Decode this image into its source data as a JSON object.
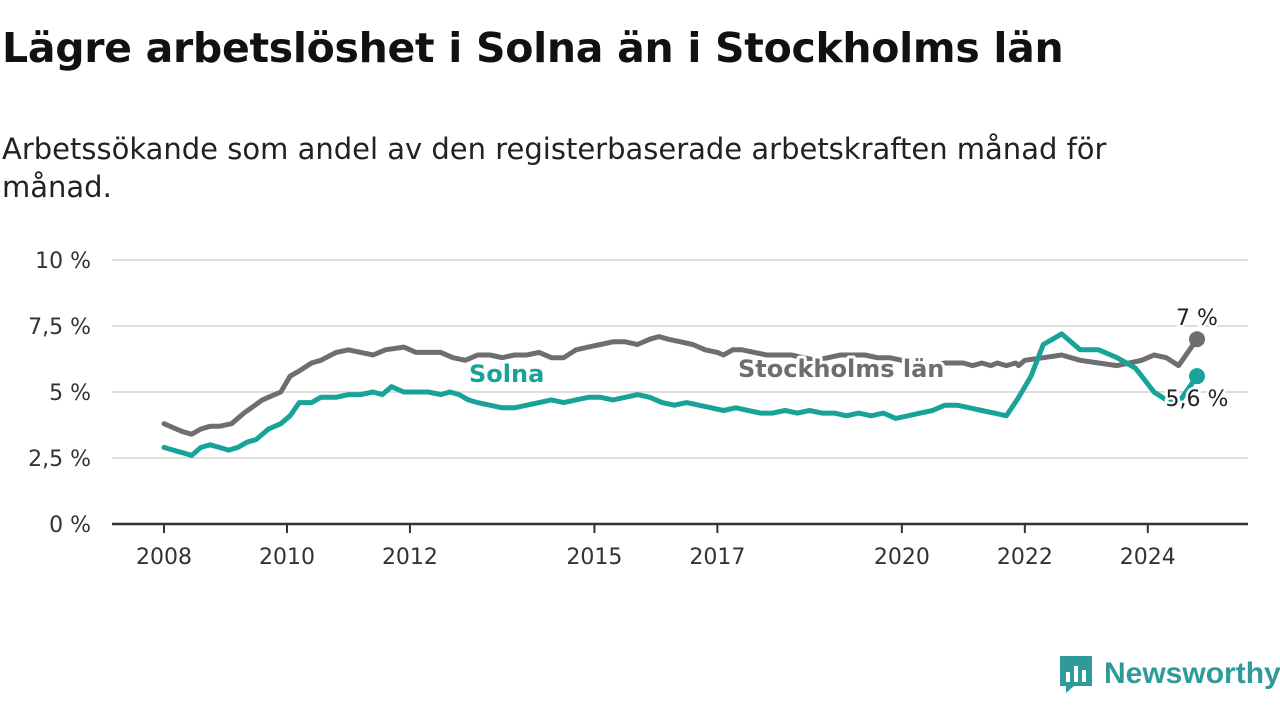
{
  "title": "Lägre arbetslöshet i Solna än i Stockholms län",
  "subtitle": "Arbetssökande som andel av den registerbaserade arbetskraften månad för månad.",
  "brand": "Newsworthy",
  "colors": {
    "solna": "#17a398",
    "stockholm": "#6e6e70",
    "grid": "#dddddd",
    "brand": "#2f9a9a"
  },
  "chart_data": {
    "type": "line",
    "title": "Lägre arbetslöshet i Solna än i Stockholms län",
    "ylabel": "",
    "xlabel": "",
    "ylim": [
      0,
      10
    ],
    "xlim": [
      2008,
      2024.9
    ],
    "y_ticks": [
      {
        "value": 0,
        "label": "0 %"
      },
      {
        "value": 2.5,
        "label": "2,5 %"
      },
      {
        "value": 5,
        "label": "5 %"
      },
      {
        "value": 7.5,
        "label": "7,5 %"
      },
      {
        "value": 10,
        "label": "10 %"
      }
    ],
    "x_ticks": [
      {
        "value": 2008,
        "label": "2008"
      },
      {
        "value": 2010,
        "label": "2010"
      },
      {
        "value": 2012,
        "label": "2012"
      },
      {
        "value": 2015,
        "label": "2015"
      },
      {
        "value": 2017,
        "label": "2017"
      },
      {
        "value": 2020,
        "label": "2020"
      },
      {
        "value": 2022,
        "label": "2022"
      },
      {
        "value": 2024,
        "label": "2024"
      }
    ],
    "series": [
      {
        "name": "Stockholms län",
        "label_at": [
          2017.2,
          5.9
        ],
        "end_label": "7 %",
        "points": [
          [
            2008.0,
            3.8
          ],
          [
            2008.2,
            3.6
          ],
          [
            2008.3,
            3.5
          ],
          [
            2008.45,
            3.4
          ],
          [
            2008.6,
            3.6
          ],
          [
            2008.75,
            3.7
          ],
          [
            2008.9,
            3.7
          ],
          [
            2009.1,
            3.8
          ],
          [
            2009.3,
            4.2
          ],
          [
            2009.6,
            4.7
          ],
          [
            2009.8,
            4.9
          ],
          [
            2009.9,
            5.0
          ],
          [
            2010.05,
            5.6
          ],
          [
            2010.2,
            5.8
          ],
          [
            2010.4,
            6.1
          ],
          [
            2010.55,
            6.2
          ],
          [
            2010.8,
            6.5
          ],
          [
            2011.0,
            6.6
          ],
          [
            2011.2,
            6.5
          ],
          [
            2011.4,
            6.4
          ],
          [
            2011.6,
            6.6
          ],
          [
            2011.9,
            6.7
          ],
          [
            2012.1,
            6.5
          ],
          [
            2012.3,
            6.5
          ],
          [
            2012.5,
            6.5
          ],
          [
            2012.7,
            6.3
          ],
          [
            2012.9,
            6.2
          ],
          [
            2013.1,
            6.4
          ],
          [
            2013.3,
            6.4
          ],
          [
            2013.5,
            6.3
          ],
          [
            2013.7,
            6.4
          ],
          [
            2013.9,
            6.4
          ],
          [
            2014.1,
            6.5
          ],
          [
            2014.3,
            6.3
          ],
          [
            2014.5,
            6.3
          ],
          [
            2014.7,
            6.6
          ],
          [
            2014.9,
            6.7
          ],
          [
            2015.1,
            6.8
          ],
          [
            2015.3,
            6.9
          ],
          [
            2015.5,
            6.9
          ],
          [
            2015.7,
            6.8
          ],
          [
            2015.9,
            7.0
          ],
          [
            2016.05,
            7.1
          ],
          [
            2016.2,
            7.0
          ],
          [
            2016.4,
            6.9
          ],
          [
            2016.6,
            6.8
          ],
          [
            2016.8,
            6.6
          ],
          [
            2017.0,
            6.5
          ],
          [
            2017.1,
            6.4
          ],
          [
            2017.25,
            6.6
          ],
          [
            2017.4,
            6.6
          ],
          [
            2017.6,
            6.5
          ],
          [
            2017.8,
            6.4
          ],
          [
            2018.0,
            6.4
          ],
          [
            2018.2,
            6.4
          ],
          [
            2018.4,
            6.3
          ],
          [
            2018.6,
            6.2
          ],
          [
            2018.8,
            6.3
          ],
          [
            2019.0,
            6.4
          ],
          [
            2019.2,
            6.4
          ],
          [
            2019.4,
            6.4
          ],
          [
            2019.6,
            6.3
          ],
          [
            2019.8,
            6.3
          ],
          [
            2020.0,
            6.2
          ],
          [
            2020.15,
            6.1
          ],
          [
            2020.3,
            6.0
          ],
          [
            2020.5,
            6.0
          ],
          [
            2020.7,
            6.1
          ],
          [
            2020.85,
            6.1
          ],
          [
            2021.0,
            6.1
          ],
          [
            2021.15,
            6.0
          ],
          [
            2021.3,
            6.1
          ],
          [
            2021.45,
            6.0
          ],
          [
            2021.55,
            6.1
          ],
          [
            2021.7,
            6.0
          ],
          [
            2021.85,
            6.1
          ],
          [
            2021.9,
            6.0
          ],
          [
            2022.0,
            6.2
          ],
          [
            2022.3,
            6.3
          ],
          [
            2022.6,
            6.4
          ],
          [
            2022.9,
            6.2
          ],
          [
            2023.2,
            6.1
          ],
          [
            2023.5,
            6.0
          ],
          [
            2023.7,
            6.1
          ],
          [
            2023.9,
            6.2
          ],
          [
            2024.1,
            6.4
          ],
          [
            2024.3,
            6.3
          ],
          [
            2024.5,
            6.0
          ],
          [
            2024.8,
            7.0
          ]
        ]
      },
      {
        "name": "Solna",
        "label_at": [
          2013.9,
          5.45
        ],
        "end_label": "5,6 %",
        "points": [
          [
            2008.0,
            2.9
          ],
          [
            2008.15,
            2.8
          ],
          [
            2008.3,
            2.7
          ],
          [
            2008.45,
            2.6
          ],
          [
            2008.6,
            2.9
          ],
          [
            2008.75,
            3.0
          ],
          [
            2008.9,
            2.9
          ],
          [
            2009.05,
            2.8
          ],
          [
            2009.2,
            2.9
          ],
          [
            2009.35,
            3.1
          ],
          [
            2009.5,
            3.2
          ],
          [
            2009.7,
            3.6
          ],
          [
            2009.9,
            3.8
          ],
          [
            2010.05,
            4.1
          ],
          [
            2010.2,
            4.6
          ],
          [
            2010.4,
            4.6
          ],
          [
            2010.55,
            4.8
          ],
          [
            2010.8,
            4.8
          ],
          [
            2011.0,
            4.9
          ],
          [
            2011.2,
            4.9
          ],
          [
            2011.4,
            5.0
          ],
          [
            2011.55,
            4.9
          ],
          [
            2011.7,
            5.2
          ],
          [
            2011.9,
            5.0
          ],
          [
            2012.1,
            5.0
          ],
          [
            2012.3,
            5.0
          ],
          [
            2012.5,
            4.9
          ],
          [
            2012.65,
            5.0
          ],
          [
            2012.8,
            4.9
          ],
          [
            2012.95,
            4.7
          ],
          [
            2013.1,
            4.6
          ],
          [
            2013.3,
            4.5
          ],
          [
            2013.5,
            4.4
          ],
          [
            2013.7,
            4.4
          ],
          [
            2013.9,
            4.5
          ],
          [
            2014.1,
            4.6
          ],
          [
            2014.3,
            4.7
          ],
          [
            2014.5,
            4.6
          ],
          [
            2014.7,
            4.7
          ],
          [
            2014.9,
            4.8
          ],
          [
            2015.1,
            4.8
          ],
          [
            2015.3,
            4.7
          ],
          [
            2015.5,
            4.8
          ],
          [
            2015.7,
            4.9
          ],
          [
            2015.9,
            4.8
          ],
          [
            2016.1,
            4.6
          ],
          [
            2016.3,
            4.5
          ],
          [
            2016.5,
            4.6
          ],
          [
            2016.7,
            4.5
          ],
          [
            2016.9,
            4.4
          ],
          [
            2017.1,
            4.3
          ],
          [
            2017.3,
            4.4
          ],
          [
            2017.5,
            4.3
          ],
          [
            2017.7,
            4.2
          ],
          [
            2017.9,
            4.2
          ],
          [
            2018.1,
            4.3
          ],
          [
            2018.3,
            4.2
          ],
          [
            2018.5,
            4.3
          ],
          [
            2018.7,
            4.2
          ],
          [
            2018.9,
            4.2
          ],
          [
            2019.1,
            4.1
          ],
          [
            2019.3,
            4.2
          ],
          [
            2019.5,
            4.1
          ],
          [
            2019.7,
            4.2
          ],
          [
            2019.9,
            4.0
          ],
          [
            2020.1,
            4.1
          ],
          [
            2020.3,
            4.2
          ],
          [
            2020.5,
            4.3
          ],
          [
            2020.7,
            4.5
          ],
          [
            2020.9,
            4.5
          ],
          [
            2021.1,
            4.4
          ],
          [
            2021.3,
            4.3
          ],
          [
            2021.5,
            4.2
          ],
          [
            2021.7,
            4.1
          ],
          [
            2021.9,
            4.8
          ],
          [
            2022.1,
            5.6
          ],
          [
            2022.3,
            6.8
          ],
          [
            2022.6,
            7.2
          ],
          [
            2022.9,
            6.6
          ],
          [
            2023.2,
            6.6
          ],
          [
            2023.5,
            6.3
          ],
          [
            2023.8,
            5.9
          ],
          [
            2024.1,
            5.0
          ],
          [
            2024.3,
            4.7
          ],
          [
            2024.5,
            4.6
          ],
          [
            2024.8,
            5.6
          ]
        ]
      }
    ]
  }
}
